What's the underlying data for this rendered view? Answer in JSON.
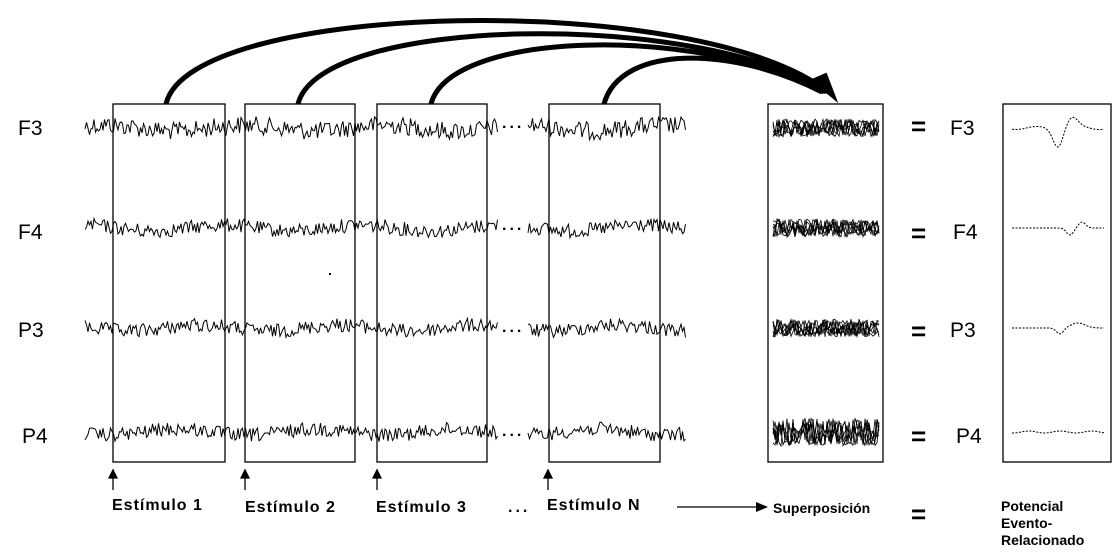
{
  "channels": [
    "F3",
    "F4",
    "P3",
    "P4"
  ],
  "stimuli": [
    "Estímulo 1",
    "Estímulo 2",
    "Estímulo 3",
    "Estímulo N"
  ],
  "ellipsis": "...",
  "superposition_label": "Superposición",
  "equals": "=",
  "result_label": [
    "Potencial",
    "Evento-",
    "Relacionado"
  ]
}
